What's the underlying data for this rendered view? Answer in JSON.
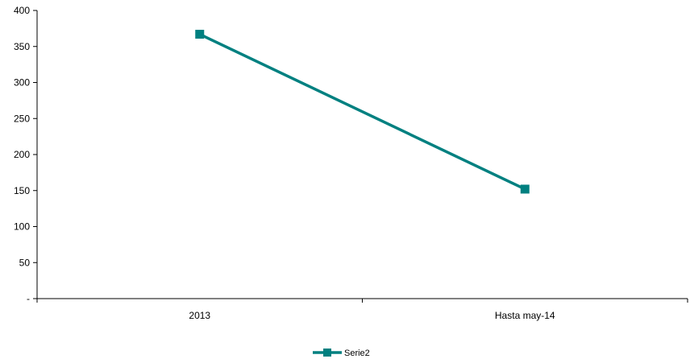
{
  "chart_data": {
    "type": "line",
    "categories": [
      "2013",
      "Hasta may-14"
    ],
    "series": [
      {
        "name": "Serie2",
        "values": [
          367,
          152
        ],
        "color": "#008080",
        "marker": "square"
      }
    ],
    "ylim": [
      0,
      400
    ],
    "yticks": [
      0,
      50,
      100,
      150,
      200,
      250,
      300,
      350,
      400
    ],
    "ytick_labels": [
      "-",
      "50",
      "100",
      "150",
      "200",
      "250",
      "300",
      "350",
      "400"
    ],
    "grid": false,
    "legend_position": "bottom-center"
  }
}
